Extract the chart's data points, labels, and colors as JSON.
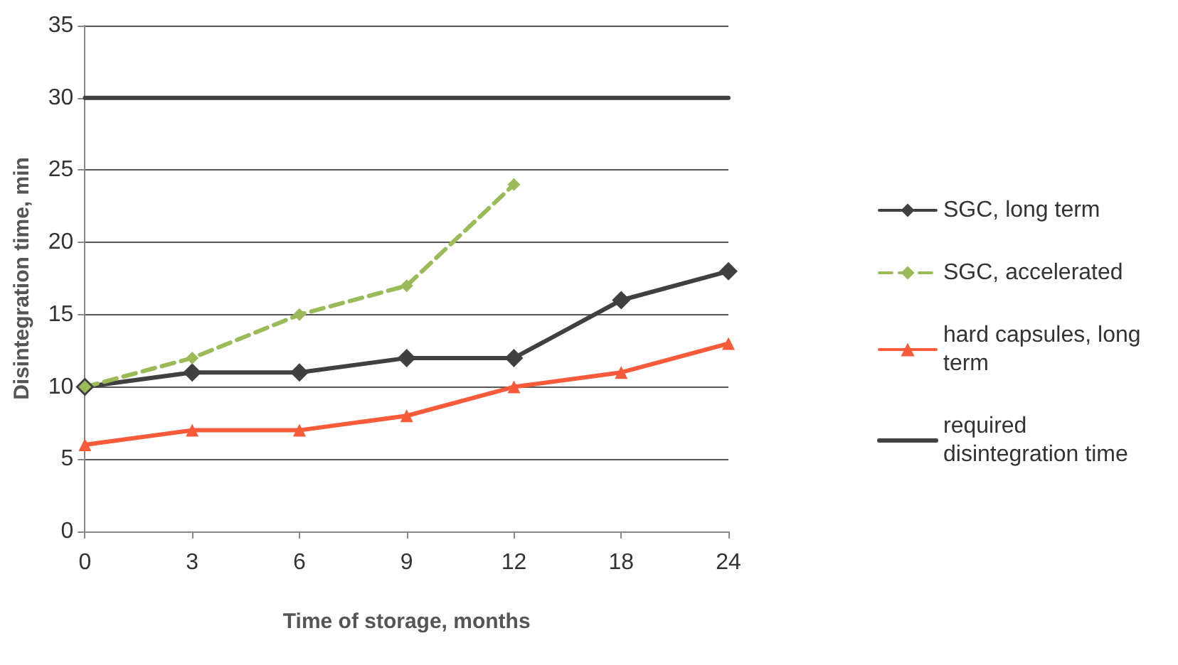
{
  "chart_data": {
    "type": "line",
    "xlabel": "Time of storage, months",
    "ylabel": "Disintegration time, min",
    "categories": [
      "0",
      "3",
      "6",
      "9",
      "12",
      "18",
      "24"
    ],
    "series": [
      {
        "name": "SGC, long term",
        "color": "#404040",
        "marker": "diamond",
        "line_style": "solid",
        "values": [
          10,
          11,
          11,
          12,
          12,
          16,
          18
        ]
      },
      {
        "name": "SGC, accelerated",
        "color": "#9bbb59",
        "marker": "diamond",
        "line_style": "dashed",
        "values": [
          10,
          12,
          15,
          17,
          24,
          null,
          null
        ]
      },
      {
        "name": "hard capsules, long term",
        "color": "#f85a3a",
        "marker": "triangle",
        "line_style": "solid",
        "values": [
          6,
          7,
          7,
          8,
          10,
          11,
          13
        ]
      },
      {
        "name": "required disintegration time",
        "color": "#404040",
        "marker": "none",
        "line_style": "solid",
        "values": [
          30,
          30,
          30,
          30,
          30,
          30,
          30
        ]
      }
    ],
    "ylim": [
      0,
      35
    ],
    "yticks": [
      0,
      5,
      10,
      15,
      20,
      25,
      30,
      35
    ],
    "grid": "y",
    "legend": "right"
  }
}
